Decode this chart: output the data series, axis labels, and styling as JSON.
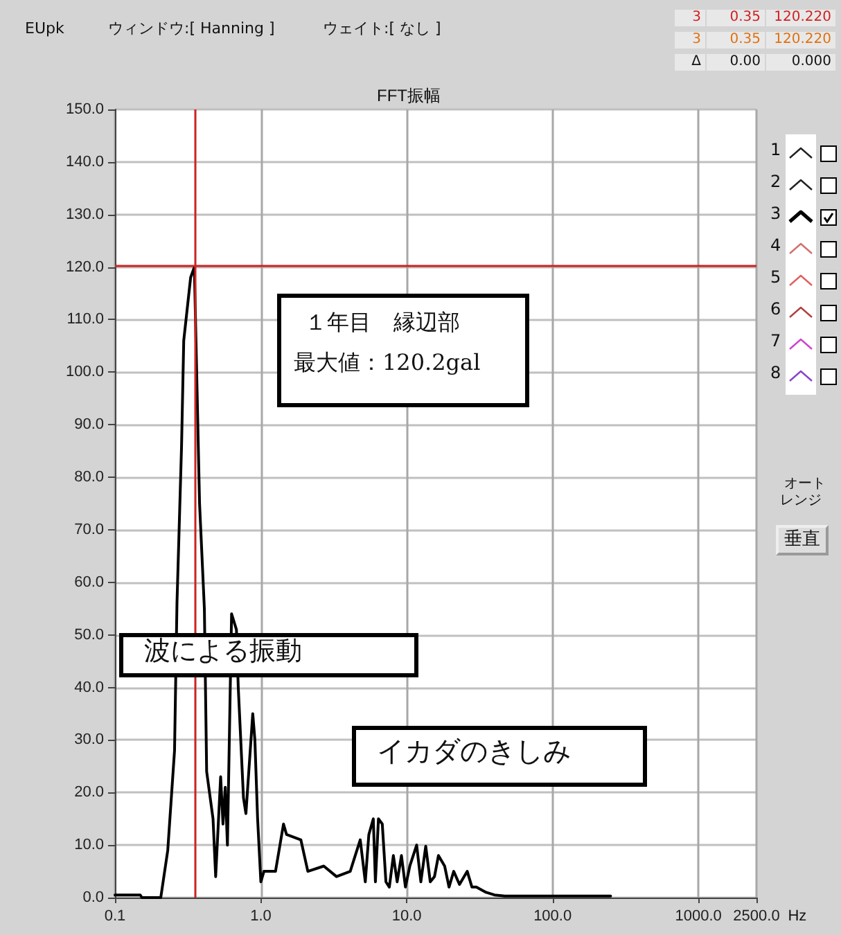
{
  "chart_data": {
    "type": "line",
    "title": "FFT振幅",
    "xlabel": "Hz",
    "log": "x",
    "grid": true,
    "marker": "none",
    "line_style": "solid",
    "xlim": [
      0.1,
      2500
    ],
    "ylim": [
      0,
      150
    ],
    "xticks": [
      {
        "value": 0.1,
        "label": "0.1"
      },
      {
        "value": 1,
        "label": "1.0"
      },
      {
        "value": 10,
        "label": "10.0"
      },
      {
        "value": 100,
        "label": "100.0"
      },
      {
        "value": 1000,
        "label": "1000.0"
      },
      {
        "value": 2500,
        "label": "2500.0"
      }
    ],
    "yticks": [
      {
        "value": 0,
        "label": "0.0"
      },
      {
        "value": 10,
        "label": "10.0"
      },
      {
        "value": 20,
        "label": "20.0"
      },
      {
        "value": 30,
        "label": "30.0"
      },
      {
        "value": 40,
        "label": "40.0"
      },
      {
        "value": 50,
        "label": "50.0"
      },
      {
        "value": 60,
        "label": "60.0"
      },
      {
        "value": 70,
        "label": "70.0"
      },
      {
        "value": 80,
        "label": "80.0"
      },
      {
        "value": 90,
        "label": "90.0"
      },
      {
        "value": 100,
        "label": "100.0"
      },
      {
        "value": 110,
        "label": "110.0"
      },
      {
        "value": 120,
        "label": "120.0"
      },
      {
        "value": 130,
        "label": "130.0"
      },
      {
        "value": 140,
        "label": "140.0"
      },
      {
        "value": 150,
        "label": "150.0"
      }
    ],
    "x": [
      0.1,
      0.149,
      0.153,
      0.206,
      0.23,
      0.256,
      0.266,
      0.286,
      0.296,
      0.33,
      0.35,
      0.38,
      0.41,
      0.425,
      0.47,
      0.49,
      0.53,
      0.55,
      0.57,
      0.59,
      0.63,
      0.68,
      0.7,
      0.76,
      0.79,
      0.88,
      0.91,
      0.95,
      1.0,
      1.05,
      1.26,
      1.43,
      1.5,
      1.88,
      2.1,
      2.7,
      3.3,
      4.1,
      4.8,
      5.2,
      5.5,
      5.9,
      6.1,
      6.4,
      6.8,
      7.2,
      7.6,
      8.1,
      8.6,
      9.2,
      9.8,
      10.5,
      11.7,
      12.5,
      13.5,
      14.5,
      15.5,
      16.5,
      18.2,
      19.5,
      21,
      23,
      26,
      28,
      30,
      35,
      40,
      47,
      100,
      250
    ],
    "series": [
      {
        "color": "#000000",
        "values": [
          0.5,
          0.5,
          0,
          0,
          9,
          28,
          56,
          86,
          106,
          118,
          120,
          75,
          55,
          24,
          15,
          4,
          23,
          14,
          21,
          10,
          54,
          51,
          40,
          19,
          16,
          35,
          30,
          15,
          3,
          5,
          5,
          14,
          12,
          11,
          5,
          6,
          4,
          5,
          11,
          3,
          12,
          15,
          3,
          15,
          14,
          3,
          2,
          8,
          3,
          8,
          2,
          6,
          10,
          3,
          9.8,
          3,
          4,
          8,
          6,
          2,
          5,
          2.5,
          5,
          2,
          2,
          1,
          0.5,
          0.3,
          0.3,
          0.3
        ]
      }
    ],
    "ref_lines": [
      {
        "axis": "x",
        "value": 0.35,
        "color": "#cc2222"
      },
      {
        "axis": "y",
        "value": 120.22,
        "color": "#cc2222"
      }
    ],
    "annotations": [
      "EUpk",
      "ウィンドウ:[ Hanning ]",
      "ウェイト:[ なし ]",
      "3",
      "0.35",
      "120.220",
      "3",
      "0.35",
      "120.220",
      "Δ",
      "0.00",
      "0.000",
      "１年目　縁辺部",
      "最大値：120.2gal",
      "波による振動",
      "イカダのきしみ",
      "オート",
      "レンジ",
      "垂直",
      "1",
      "2",
      "3",
      "4",
      "5",
      "6",
      "7",
      "8"
    ]
  }
}
